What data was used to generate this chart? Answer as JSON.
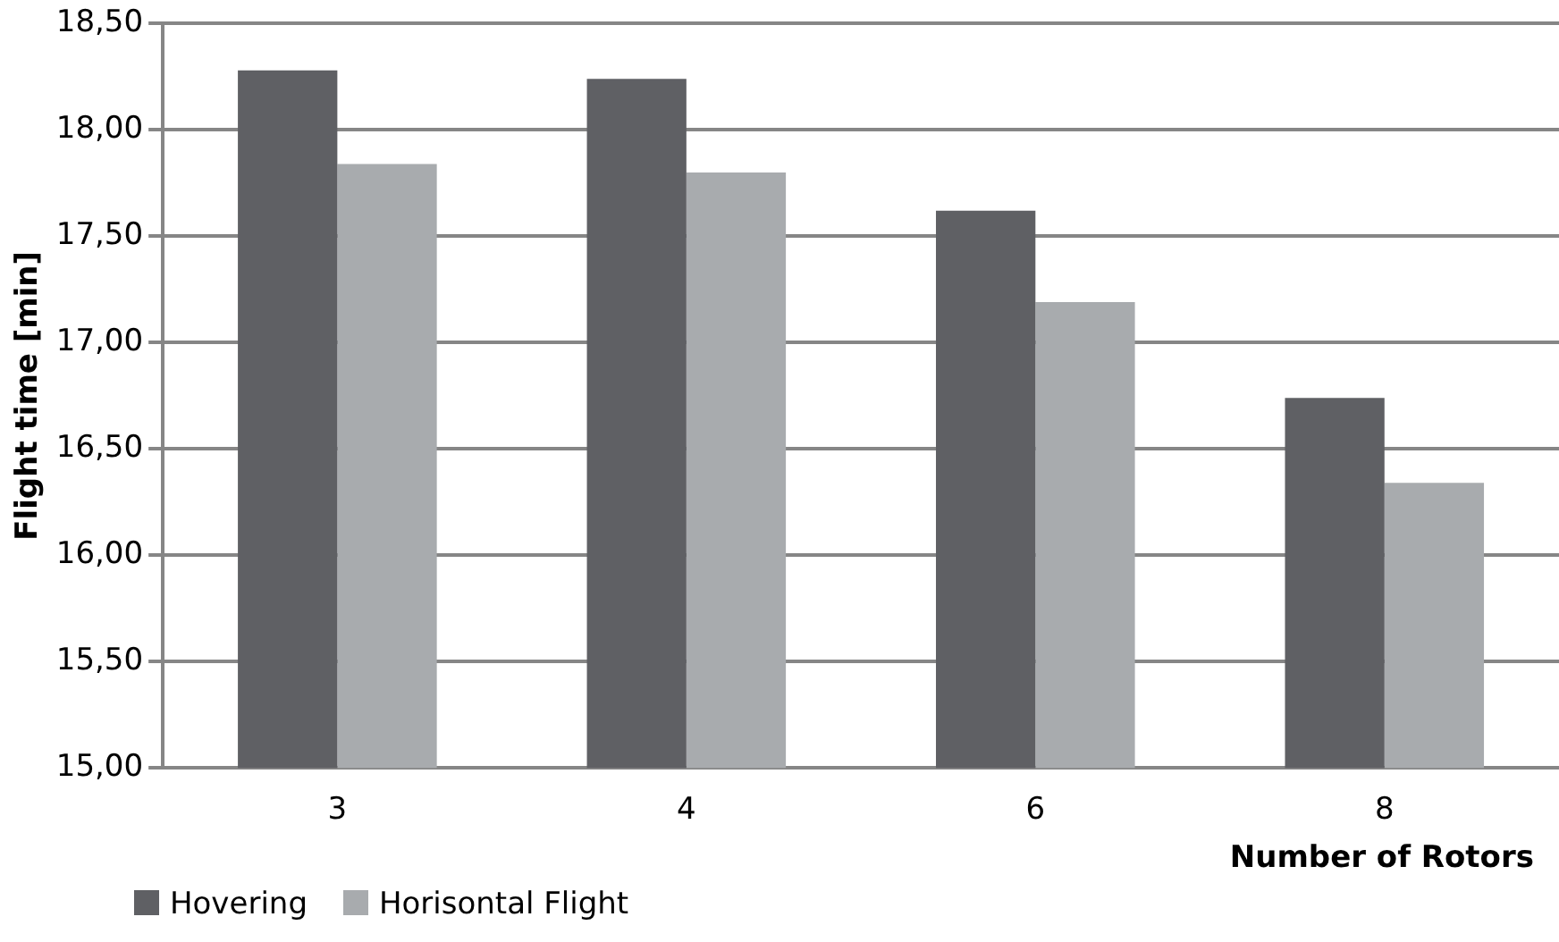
{
  "chart_data": {
    "type": "bar",
    "xlabel": "Number of Rotors",
    "ylabel": "Flight time [min]",
    "categories": [
      "3",
      "4",
      "6",
      "8"
    ],
    "series": [
      {
        "name": "Hovering",
        "color": "#5f6064",
        "values": [
          18.28,
          18.24,
          17.62,
          16.74
        ]
      },
      {
        "name": "Horisontal Flight",
        "color": "#a8abae",
        "values": [
          17.84,
          17.8,
          17.19,
          16.34
        ]
      }
    ],
    "ylim": [
      15,
      18.5
    ],
    "yticks": [
      {
        "value": 15,
        "label": "15,00"
      },
      {
        "value": 15.5,
        "label": "15,50"
      },
      {
        "value": 16,
        "label": "16,00"
      },
      {
        "value": 16.5,
        "label": "16,50"
      },
      {
        "value": 17,
        "label": "17,00"
      },
      {
        "value": 17.5,
        "label": "17,50"
      },
      {
        "value": 18,
        "label": "18,00"
      },
      {
        "value": 18.5,
        "label": "18,50"
      }
    ],
    "grid": "y",
    "legend": "bottom left"
  }
}
